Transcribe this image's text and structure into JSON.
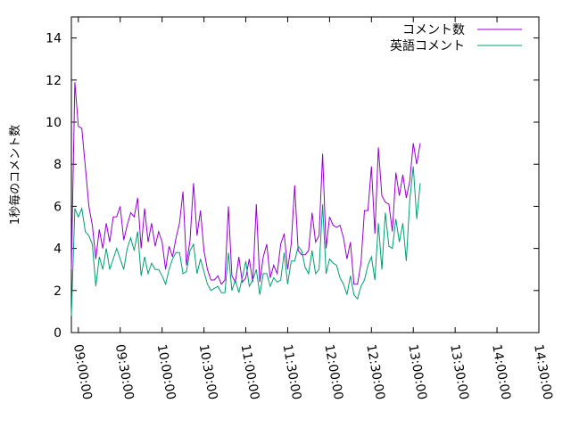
{
  "chart_data": {
    "type": "line",
    "title": "",
    "xlabel": "",
    "ylabel": "1秒毎のコメント数",
    "ylim": [
      0,
      15
    ],
    "xlim": [
      "08:55:00",
      "14:30:00"
    ],
    "y_ticks": [
      0,
      2,
      4,
      6,
      8,
      10,
      12,
      14
    ],
    "x_ticks": [
      "09:00:00",
      "09:30:00",
      "10:00:00",
      "10:30:00",
      "11:00:00",
      "11:30:00",
      "12:00:00",
      "12:30:00",
      "13:00:00",
      "13:30:00",
      "14:00:00",
      "14:30:00"
    ],
    "grid": false,
    "legend_position": "top-right",
    "x_interval_minutes": 2.5,
    "x_start": "08:55:00",
    "series": [
      {
        "name": "コメント数",
        "color": "#9400d3",
        "values": [
          3.0,
          11.9,
          9.8,
          9.7,
          7.9,
          6.0,
          5.1,
          3.5,
          4.9,
          4.0,
          5.2,
          4.3,
          5.5,
          5.5,
          6.0,
          4.4,
          5.1,
          5.7,
          5.5,
          6.4,
          4.0,
          5.9,
          4.3,
          5.2,
          4.1,
          4.8,
          4.3,
          3.0,
          4.1,
          3.6,
          4.5,
          5.2,
          6.7,
          3.2,
          4.4,
          7.1,
          4.6,
          5.8,
          3.9,
          3.0,
          2.5,
          2.5,
          2.7,
          2.3,
          2.5,
          6.0,
          2.7,
          2.4,
          3.6,
          2.4,
          2.6,
          3.5,
          2.4,
          6.1,
          2.4,
          3.6,
          4.2,
          2.6,
          3.2,
          2.8,
          4.2,
          4.7,
          3.0,
          4.2,
          7.0,
          3.9,
          3.7,
          3.7,
          3.9,
          5.7,
          4.3,
          4.6,
          8.5,
          4.0,
          5.5,
          5.1,
          5.0,
          5.1,
          4.5,
          3.5,
          4.3,
          2.3,
          2.3,
          3.3,
          5.8,
          5.8,
          7.9,
          4.7,
          8.8,
          6.5,
          6.2,
          6.1,
          4.8,
          7.6,
          6.5,
          7.5,
          6.4,
          7.2,
          9.0,
          8.0,
          9.0
        ]
      },
      {
        "name": "英語コメント",
        "color": "#009e73",
        "values": [
          0.8,
          5.9,
          5.5,
          5.9,
          4.8,
          4.6,
          4.2,
          2.2,
          3.6,
          3.0,
          4.0,
          3.0,
          3.5,
          4.0,
          3.5,
          3.0,
          4.0,
          4.5,
          3.9,
          4.8,
          2.7,
          3.6,
          2.8,
          3.3,
          3.0,
          3.0,
          2.7,
          2.3,
          3.0,
          3.5,
          3.8,
          3.8,
          2.8,
          2.9,
          3.9,
          4.2,
          2.8,
          3.5,
          2.9,
          2.3,
          2.0,
          2.1,
          2.2,
          1.9,
          1.9,
          3.8,
          2.0,
          2.5,
          1.9,
          2.6,
          3.4,
          2.2,
          2.5,
          3.0,
          1.8,
          2.8,
          2.8,
          2.2,
          2.6,
          2.4,
          2.5,
          3.8,
          2.3,
          3.4,
          3.4,
          4.1,
          3.9,
          3.1,
          2.8,
          3.9,
          2.8,
          3.0,
          6.1,
          2.8,
          3.5,
          3.3,
          3.2,
          2.6,
          2.3,
          1.8,
          2.7,
          1.8,
          1.6,
          2.2,
          2.5,
          3.2,
          3.6,
          2.5,
          5.2,
          3.0,
          5.7,
          4.1,
          4.0,
          5.4,
          4.3,
          5.2,
          3.4,
          6.3,
          7.9,
          5.4,
          7.1
        ]
      }
    ]
  }
}
